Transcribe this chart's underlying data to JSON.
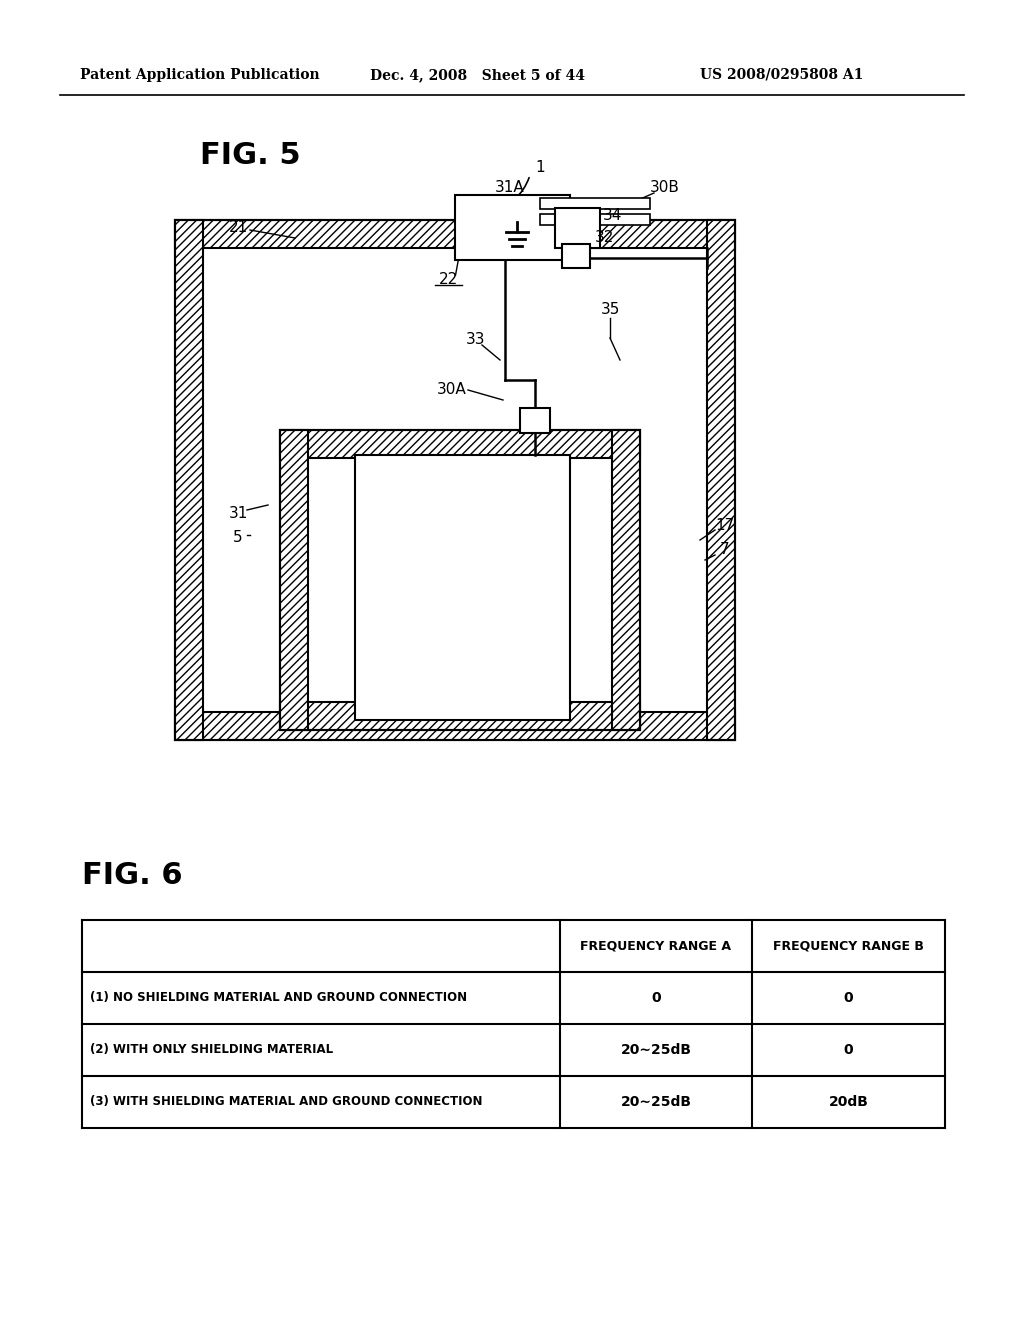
{
  "background_color": "#ffffff",
  "header_left": "Patent Application Publication",
  "header_center": "Dec. 4, 2008   Sheet 5 of 44",
  "header_right": "US 2008/0295808 A1",
  "fig5_label": "FIG. 5",
  "fig6_label": "FIG. 6",
  "table_headers": [
    "",
    "FREQUENCY RANGE A",
    "FREQUENCY RANGE B"
  ],
  "table_rows": [
    [
      "(1) NO SHIELDING MATERIAL AND GROUND CONNECTION",
      "0",
      "0"
    ],
    [
      "(2) WITH ONLY SHIELDING MATERIAL",
      "20∼25dB",
      "0"
    ],
    [
      "(3) WITH SHIELDING MATERIAL AND GROUND CONNECTION",
      "20∼25dB",
      "20dB"
    ]
  ]
}
